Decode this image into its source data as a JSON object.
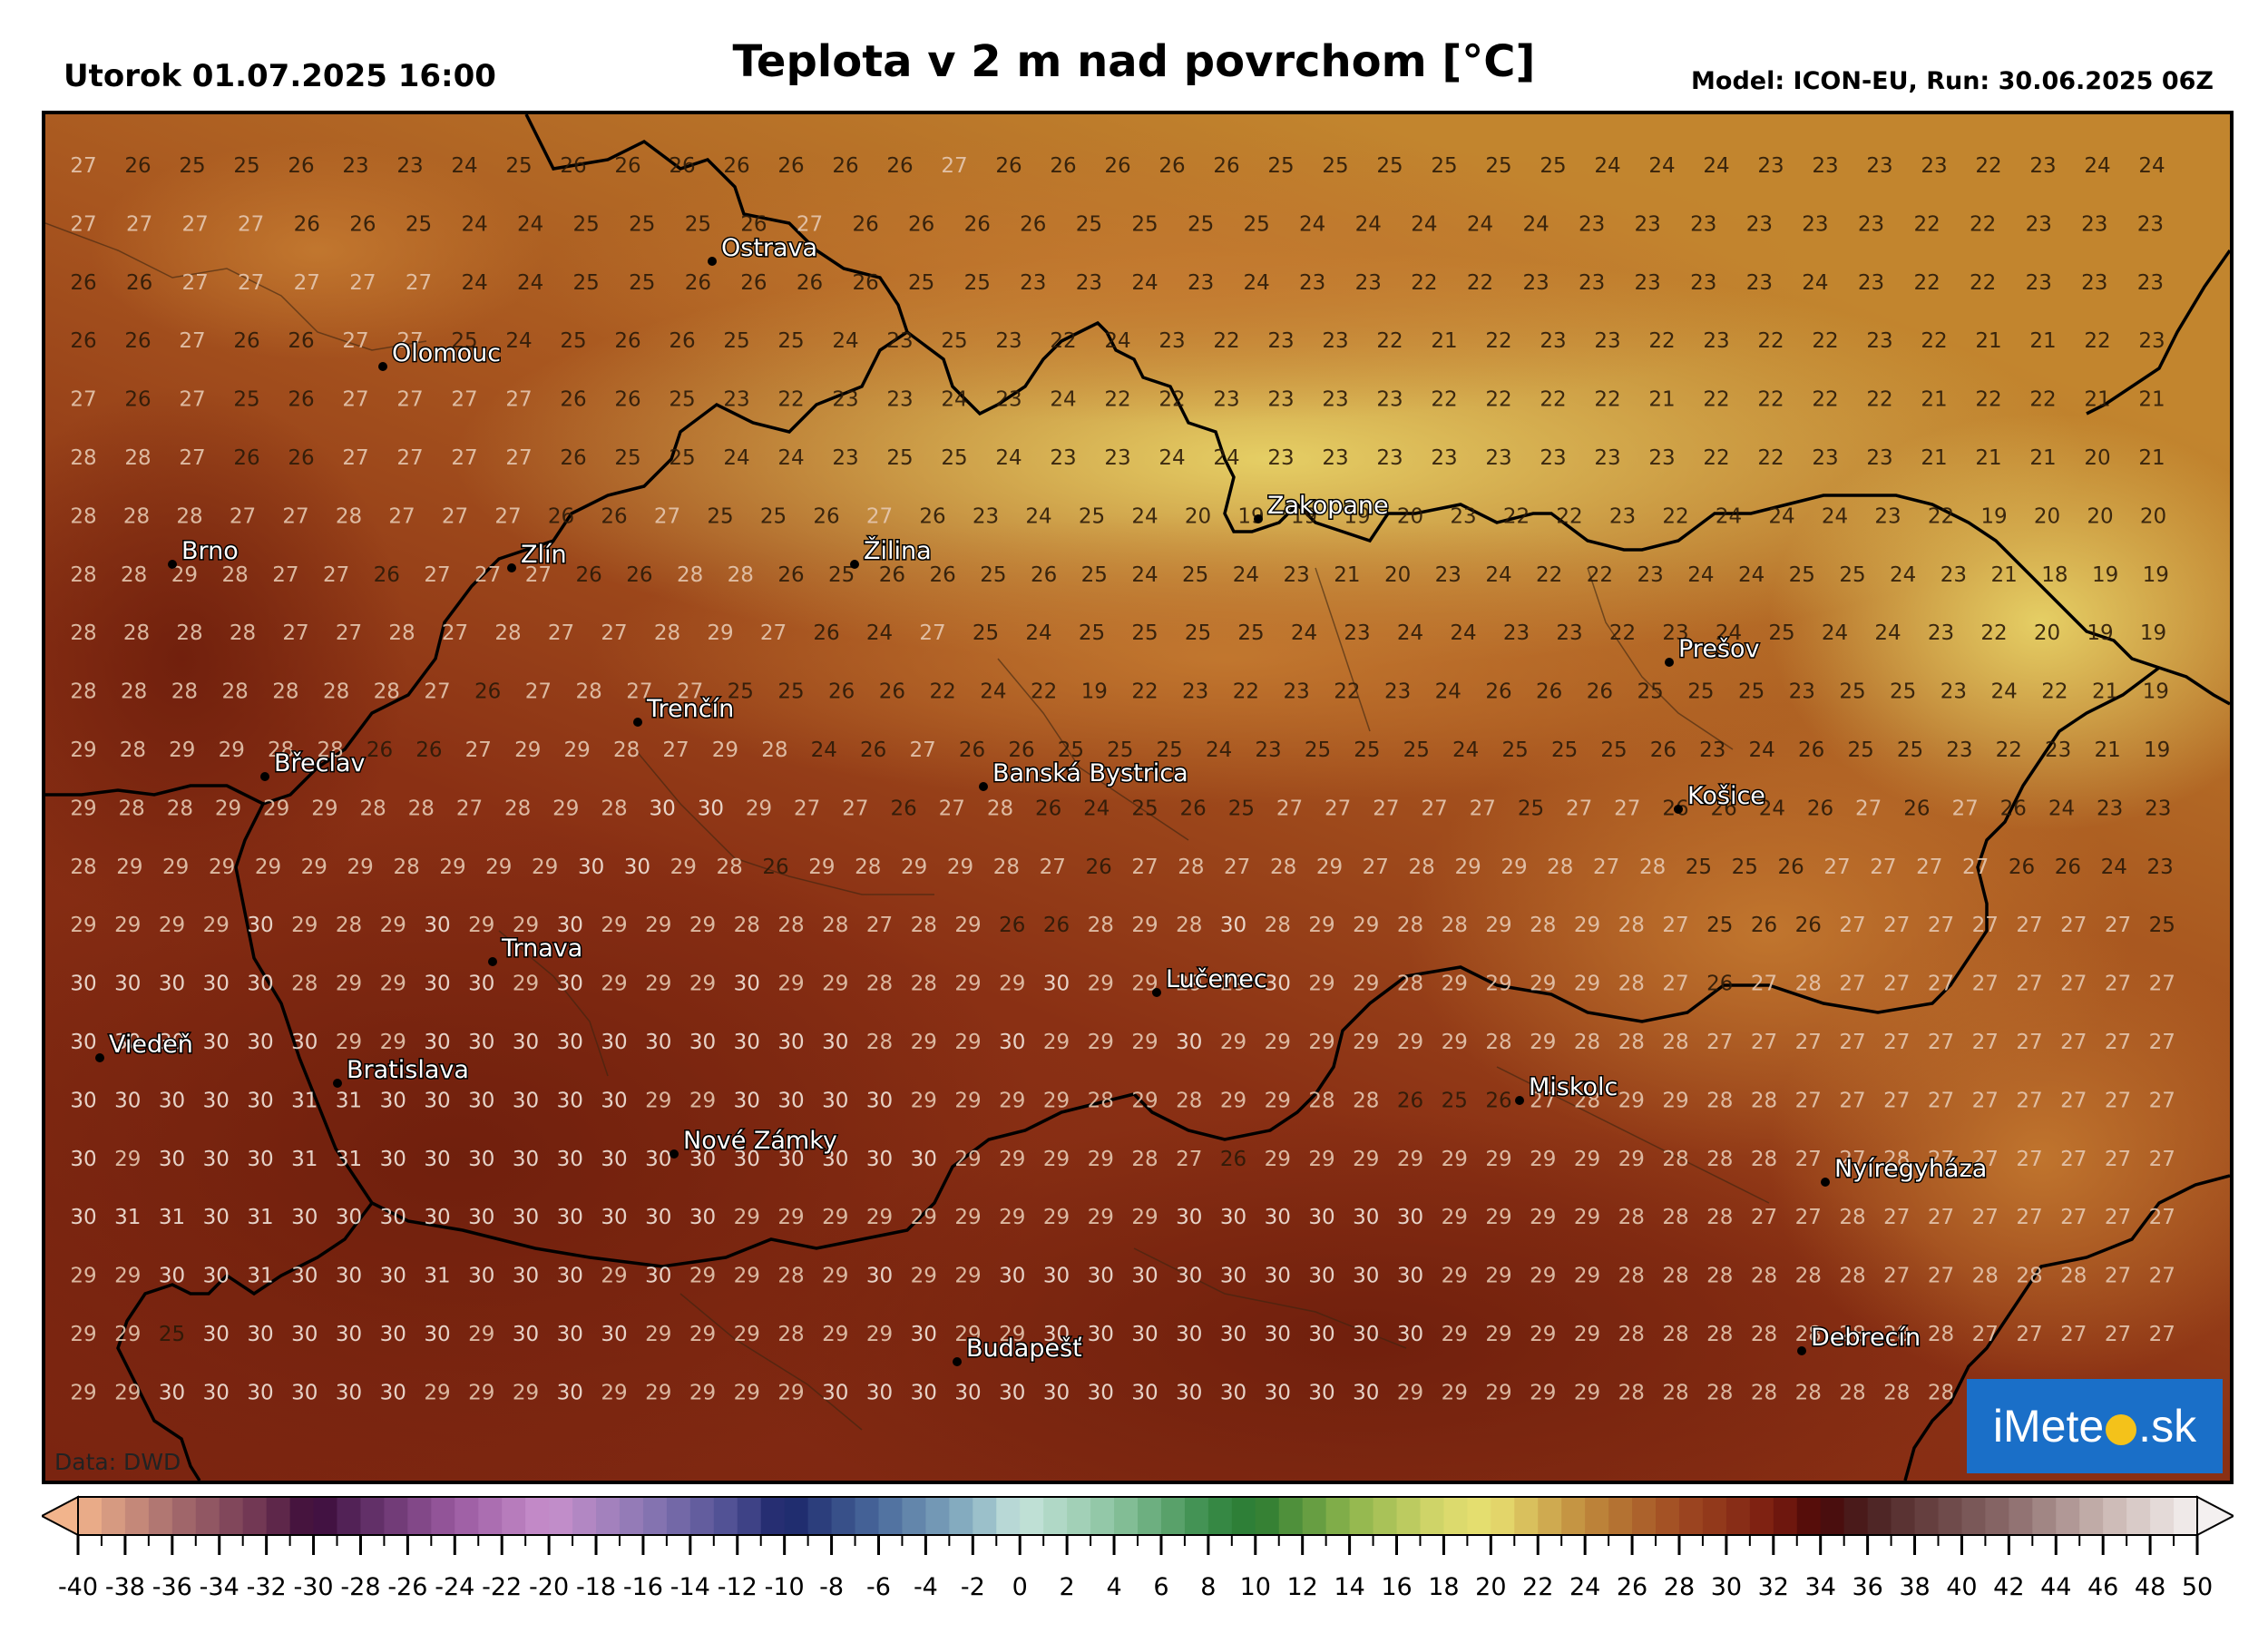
{
  "header": {
    "datetime": "Utorok 01.07.2025 16:00",
    "title": "Teplota v 2 m nad povrchom [°C]",
    "model": "Model: ICON-EU, Run: 30.06.2025 06Z"
  },
  "map": {
    "data_source": "Data: DWD",
    "logo": {
      "prefix": "iMete",
      "suffix": ".sk",
      "icon": "sun-icon"
    },
    "colors": {
      "hot": "#7a2410",
      "warm": "#a4441c",
      "mild": "#c47a30",
      "cool": "#d8b048",
      "cold": "#e0cc5c",
      "border": "#000000",
      "city_label": "#ffffff"
    },
    "cities": [
      "Ostrava",
      "Olomouc",
      "Brno",
      "Zlín",
      "Žilina",
      "Zakopane",
      "Trenčín",
      "Prešov",
      "Břeclav",
      "Banská Bystrica",
      "Košice",
      "Trnava",
      "Lučenec",
      "Viedeň",
      "Bratislava",
      "Miskolc",
      "Nové Zámky",
      "Nyíregyháza",
      "Budapešť",
      "Debrecín"
    ],
    "temperature_grid": [
      [
        27,
        26,
        25,
        25,
        26,
        23,
        23,
        24,
        25,
        26,
        26,
        26,
        26,
        26,
        26,
        26,
        27,
        26,
        26,
        26,
        26,
        26,
        25,
        25,
        25,
        25,
        25,
        25,
        24,
        24,
        24,
        23,
        23,
        23,
        23,
        22,
        23,
        24,
        24
      ],
      [
        27,
        27,
        27,
        27,
        26,
        26,
        25,
        24,
        24,
        25,
        25,
        25,
        26,
        27,
        26,
        26,
        26,
        26,
        25,
        25,
        25,
        25,
        24,
        24,
        24,
        24,
        24,
        23,
        23,
        23,
        23,
        23,
        23,
        22,
        22,
        23,
        23,
        23
      ],
      [
        26,
        26,
        27,
        27,
        27,
        27,
        27,
        24,
        24,
        25,
        25,
        26,
        26,
        26,
        26,
        25,
        25,
        23,
        23,
        24,
        23,
        24,
        23,
        23,
        22,
        22,
        23,
        23,
        23,
        23,
        23,
        24,
        23,
        22,
        22,
        23,
        23,
        23
      ],
      [
        26,
        26,
        27,
        26,
        26,
        27,
        27,
        25,
        24,
        25,
        26,
        26,
        25,
        25,
        24,
        23,
        25,
        23,
        22,
        24,
        23,
        22,
        23,
        23,
        22,
        21,
        22,
        23,
        23,
        22,
        23,
        22,
        22,
        23,
        22,
        21,
        21,
        22,
        23
      ],
      [
        27,
        26,
        27,
        25,
        26,
        27,
        27,
        27,
        27,
        26,
        26,
        25,
        23,
        22,
        23,
        23,
        24,
        23,
        24,
        22,
        22,
        23,
        23,
        23,
        23,
        22,
        22,
        22,
        22,
        21,
        22,
        22,
        22,
        22,
        21,
        22,
        22,
        21,
        21
      ],
      [
        28,
        28,
        27,
        26,
        26,
        27,
        27,
        27,
        27,
        26,
        25,
        25,
        24,
        24,
        23,
        25,
        25,
        24,
        23,
        23,
        24,
        24,
        23,
        23,
        23,
        23,
        23,
        23,
        23,
        23,
        22,
        22,
        23,
        23,
        21,
        21,
        21,
        20,
        21
      ],
      [
        28,
        28,
        28,
        27,
        27,
        28,
        27,
        27,
        27,
        26,
        26,
        27,
        25,
        25,
        26,
        27,
        26,
        23,
        24,
        25,
        24,
        20,
        19,
        19,
        19,
        20,
        23,
        22,
        22,
        23,
        22,
        24,
        24,
        24,
        23,
        22,
        19,
        20,
        20,
        20
      ],
      [
        28,
        28,
        29,
        28,
        27,
        27,
        26,
        27,
        27,
        27,
        26,
        26,
        28,
        28,
        26,
        25,
        26,
        26,
        25,
        26,
        25,
        24,
        25,
        24,
        23,
        21,
        20,
        23,
        24,
        22,
        22,
        23,
        24,
        24,
        25,
        25,
        24,
        23,
        21,
        18,
        19,
        19
      ],
      [
        28,
        28,
        28,
        28,
        27,
        27,
        28,
        27,
        28,
        27,
        27,
        28,
        29,
        27,
        26,
        24,
        27,
        25,
        24,
        25,
        25,
        25,
        25,
        24,
        23,
        24,
        24,
        23,
        23,
        22,
        23,
        24,
        25,
        24,
        24,
        23,
        22,
        20,
        19,
        19
      ],
      [
        28,
        28,
        28,
        28,
        28,
        28,
        28,
        27,
        26,
        27,
        28,
        27,
        27,
        25,
        25,
        26,
        26,
        22,
        24,
        22,
        19,
        22,
        23,
        22,
        23,
        22,
        23,
        24,
        26,
        26,
        26,
        25,
        25,
        25,
        23,
        25,
        25,
        23,
        24,
        22,
        21,
        19
      ],
      [
        29,
        28,
        29,
        29,
        28,
        28,
        26,
        26,
        27,
        29,
        29,
        28,
        27,
        29,
        28,
        24,
        26,
        27,
        26,
        26,
        25,
        25,
        25,
        24,
        23,
        25,
        25,
        25,
        24,
        25,
        25,
        25,
        26,
        23,
        24,
        26,
        25,
        25,
        23,
        22,
        23,
        21,
        19
      ],
      [
        29,
        28,
        28,
        29,
        29,
        29,
        28,
        28,
        27,
        28,
        29,
        28,
        30,
        30,
        29,
        27,
        27,
        26,
        27,
        28,
        26,
        24,
        25,
        26,
        25,
        27,
        27,
        27,
        27,
        27,
        25,
        27,
        27,
        26,
        26,
        24,
        26,
        27,
        26,
        27,
        26,
        24,
        23,
        23
      ],
      [
        28,
        29,
        29,
        29,
        29,
        29,
        29,
        28,
        29,
        29,
        29,
        30,
        30,
        29,
        28,
        26,
        29,
        28,
        29,
        29,
        28,
        27,
        26,
        27,
        28,
        27,
        28,
        29,
        27,
        28,
        29,
        29,
        28,
        27,
        28,
        25,
        25,
        26,
        27,
        27,
        27,
        27,
        26,
        26,
        24,
        23
      ],
      [
        29,
        29,
        29,
        29,
        30,
        29,
        28,
        29,
        30,
        29,
        29,
        30,
        29,
        29,
        29,
        28,
        28,
        28,
        27,
        28,
        29,
        26,
        26,
        28,
        29,
        28,
        30,
        28,
        29,
        29,
        28,
        28,
        29,
        28,
        29,
        28,
        27,
        25,
        26,
        26,
        27,
        27,
        27,
        27,
        27,
        27,
        27,
        25
      ],
      [
        30,
        30,
        30,
        30,
        30,
        28,
        29,
        29,
        30,
        30,
        29,
        30,
        29,
        29,
        29,
        30,
        29,
        29,
        28,
        28,
        29,
        29,
        30,
        29,
        29,
        29,
        29,
        30,
        29,
        29,
        28,
        29,
        29,
        29,
        29,
        28,
        27,
        26,
        27,
        28,
        27,
        27,
        27,
        27,
        27,
        27,
        27,
        27
      ],
      [
        30,
        30,
        30,
        30,
        30,
        30,
        29,
        29,
        30,
        30,
        30,
        30,
        30,
        30,
        30,
        30,
        30,
        30,
        28,
        29,
        29,
        30,
        29,
        29,
        29,
        30,
        29,
        29,
        29,
        29,
        29,
        29,
        28,
        29,
        28,
        28,
        28,
        27,
        27,
        27,
        27,
        27,
        27,
        27,
        27,
        27,
        27,
        27
      ],
      [
        30,
        30,
        30,
        30,
        30,
        31,
        31,
        30,
        30,
        30,
        30,
        30,
        30,
        29,
        29,
        30,
        30,
        30,
        30,
        29,
        29,
        29,
        29,
        28,
        29,
        28,
        29,
        29,
        28,
        28,
        26,
        25,
        26,
        27,
        28,
        29,
        29,
        28,
        28,
        27,
        27,
        27,
        27,
        27,
        27,
        27,
        27,
        27
      ],
      [
        30,
        29,
        30,
        30,
        30,
        31,
        31,
        30,
        30,
        30,
        30,
        30,
        30,
        30,
        30,
        30,
        30,
        30,
        30,
        30,
        29,
        29,
        29,
        29,
        28,
        27,
        26,
        29,
        29,
        29,
        29,
        29,
        29,
        29,
        29,
        29,
        28,
        28,
        28,
        27,
        27,
        28,
        27,
        27,
        27,
        27,
        27,
        27
      ],
      [
        30,
        31,
        31,
        30,
        31,
        30,
        30,
        30,
        30,
        30,
        30,
        30,
        30,
        30,
        30,
        29,
        29,
        29,
        29,
        29,
        29,
        29,
        29,
        29,
        29,
        30,
        30,
        30,
        30,
        30,
        30,
        29,
        29,
        29,
        29,
        28,
        28,
        28,
        27,
        27,
        28,
        27,
        27,
        27,
        27,
        27,
        27,
        27
      ],
      [
        29,
        29,
        30,
        30,
        31,
        30,
        30,
        30,
        31,
        30,
        30,
        30,
        29,
        30,
        29,
        29,
        28,
        29,
        30,
        29,
        29,
        30,
        30,
        30,
        30,
        30,
        30,
        30,
        30,
        30,
        30,
        29,
        29,
        29,
        29,
        28,
        28,
        28,
        28,
        28,
        28,
        27,
        27,
        28,
        28,
        28,
        27,
        27
      ],
      [
        29,
        29,
        25,
        30,
        30,
        30,
        30,
        30,
        30,
        29,
        30,
        30,
        30,
        29,
        29,
        29,
        28,
        29,
        29,
        30,
        29,
        29,
        30,
        30,
        30,
        30,
        30,
        30,
        30,
        30,
        30,
        29,
        29,
        29,
        29,
        28,
        28,
        28,
        28,
        28,
        28,
        28,
        28,
        27,
        27,
        27,
        27,
        27
      ],
      [
        29,
        29,
        30,
        30,
        30,
        30,
        30,
        30,
        29,
        29,
        29,
        30,
        29,
        29,
        29,
        29,
        29,
        30,
        30,
        30,
        30,
        30,
        30,
        30,
        30,
        30,
        30,
        30,
        30,
        30,
        29,
        29,
        29,
        29,
        29,
        28,
        28,
        28,
        28,
        28,
        28,
        28,
        28,
        28,
        28,
        28,
        28,
        28
      ]
    ]
  }
}
